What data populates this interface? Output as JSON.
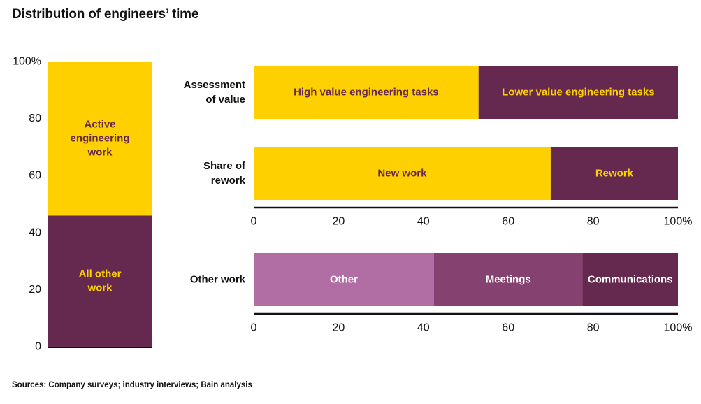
{
  "title": "Distribution of engineers’ time",
  "source": "Sources: Company surveys; industry interviews; Bain analysis",
  "colors": {
    "yellow": "#FFD000",
    "plum": "#65294F",
    "light_purple": "#B06EA4",
    "mid_purple": "#85416F",
    "dark_purple": "#65294F",
    "label_on_yellow": "#65294F",
    "label_on_plum": "#FFD000",
    "label_on_purple": "#FFFFFF"
  },
  "chart_data": [
    {
      "type": "bar",
      "stacked": true,
      "orientation": "vertical",
      "ylim": [
        0,
        100
      ],
      "yticks": [
        {
          "value": 0,
          "label": "0"
        },
        {
          "value": 20,
          "label": "20"
        },
        {
          "value": 40,
          "label": "40"
        },
        {
          "value": 60,
          "label": "60"
        },
        {
          "value": 80,
          "label": "80"
        },
        {
          "value": 100,
          "label": "100%"
        }
      ],
      "segments": [
        {
          "name": "All other work",
          "lines": [
            "All other",
            "work"
          ],
          "value": 46,
          "color": "#65294F",
          "label_color": "#FFD000"
        },
        {
          "name": "Active engineering work",
          "lines": [
            "Active",
            "engineering",
            "work"
          ],
          "value": 54,
          "color": "#FFD000",
          "label_color": "#65294F"
        }
      ]
    },
    {
      "type": "bar",
      "stacked": true,
      "orientation": "horizontal",
      "xlim": [
        0,
        100
      ],
      "xticks": [
        {
          "value": 0,
          "label": "0"
        },
        {
          "value": 20,
          "label": "20"
        },
        {
          "value": 40,
          "label": "40"
        },
        {
          "value": 60,
          "label": "60"
        },
        {
          "value": 80,
          "label": "80"
        },
        {
          "value": 100,
          "label": "100%"
        }
      ],
      "rows": [
        {
          "category": "Assessment of value",
          "category_lines": [
            "Assessment",
            "of value"
          ],
          "segments": [
            {
              "name": "High value engineering tasks",
              "value": 53,
              "color": "#FFD000",
              "label_color": "#65294F"
            },
            {
              "name": "Lower value engineering tasks",
              "value": 47,
              "color": "#65294F",
              "label_color": "#FFD000"
            }
          ]
        },
        {
          "category": "Share of rework",
          "category_lines": [
            "Share of",
            "rework"
          ],
          "segments": [
            {
              "name": "New work",
              "value": 70,
              "color": "#FFD000",
              "label_color": "#65294F"
            },
            {
              "name": "Rework",
              "value": 30,
              "color": "#65294F",
              "label_color": "#FFD000"
            }
          ]
        }
      ]
    },
    {
      "type": "bar",
      "stacked": true,
      "orientation": "horizontal",
      "xlim": [
        0,
        100
      ],
      "xticks": [
        {
          "value": 0,
          "label": "0"
        },
        {
          "value": 20,
          "label": "20"
        },
        {
          "value": 40,
          "label": "40"
        },
        {
          "value": 60,
          "label": "60"
        },
        {
          "value": 80,
          "label": "80"
        },
        {
          "value": 100,
          "label": "100%"
        }
      ],
      "rows": [
        {
          "category": "Other work",
          "category_lines": [
            "Other work"
          ],
          "segments": [
            {
              "name": "Other",
              "value": 42.5,
              "color": "#B06EA4",
              "label_color": "#FFFFFF"
            },
            {
              "name": "Meetings",
              "value": 35,
              "color": "#85416F",
              "label_color": "#FFFFFF"
            },
            {
              "name": "Communications",
              "value": 22.5,
              "color": "#65294F",
              "label_color": "#FFFFFF"
            }
          ]
        }
      ]
    }
  ]
}
